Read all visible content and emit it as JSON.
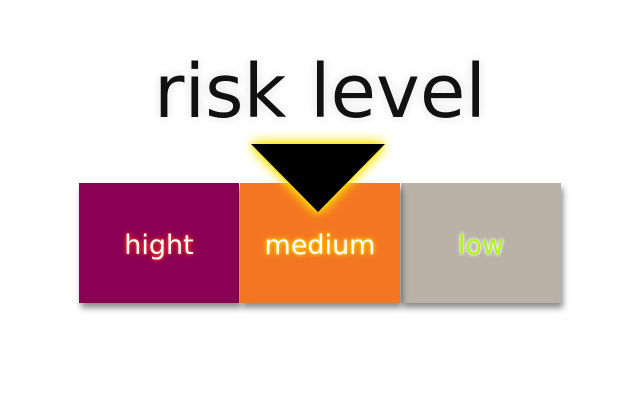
{
  "title": "risk level",
  "levels": [
    {
      "label": "hight",
      "color": "#8b0055",
      "text_color": "#ffffff",
      "glow_color": "#ff3a1a"
    },
    {
      "label": "medium",
      "color": "#f47622",
      "text_color": "#ffffff",
      "glow_color": "#ffe100"
    },
    {
      "label": "low",
      "color": "#bab2a7",
      "text_color": "#aef51a",
      "glow_color": "#ffffff"
    }
  ],
  "indicator": {
    "icon": "triangle-down-icon",
    "selected": "medium",
    "color": "#000000",
    "glow_color": "#ffe600"
  }
}
